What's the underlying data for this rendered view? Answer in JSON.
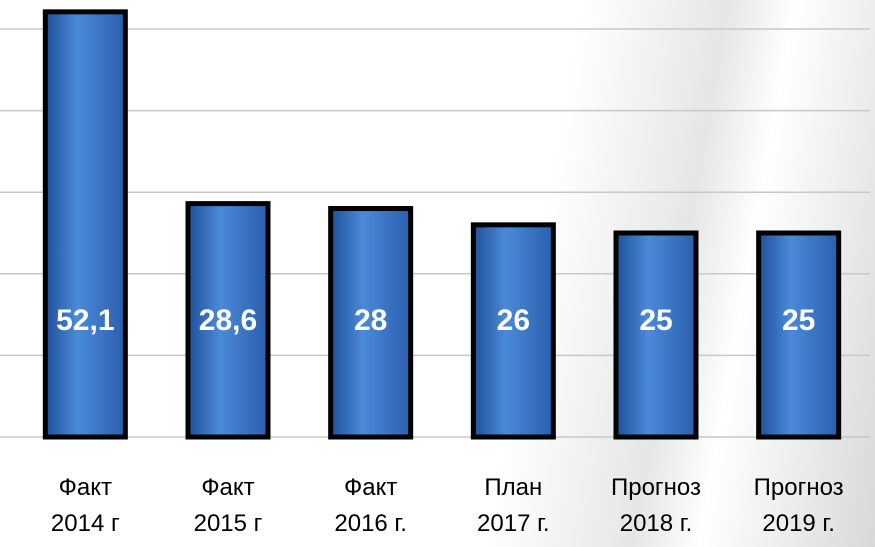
{
  "chart_data": {
    "type": "bar",
    "categories": [
      "Факт\n2014 г",
      "Факт\n2015 г",
      "Факт\n2016 г.",
      "План\n2017 г.",
      "Прогноз\n2018 г.",
      "Прогноз\n2019 г."
    ],
    "values": [
      52.1,
      28.6,
      28,
      26,
      25,
      25
    ],
    "value_labels": [
      "52,1",
      "28,6",
      "28",
      "26",
      "25",
      "25"
    ],
    "color": "#3a78c8",
    "ylim": [
      0,
      53
    ],
    "yticks": [
      0,
      10,
      20,
      30,
      40,
      50
    ],
    "grid": true
  }
}
